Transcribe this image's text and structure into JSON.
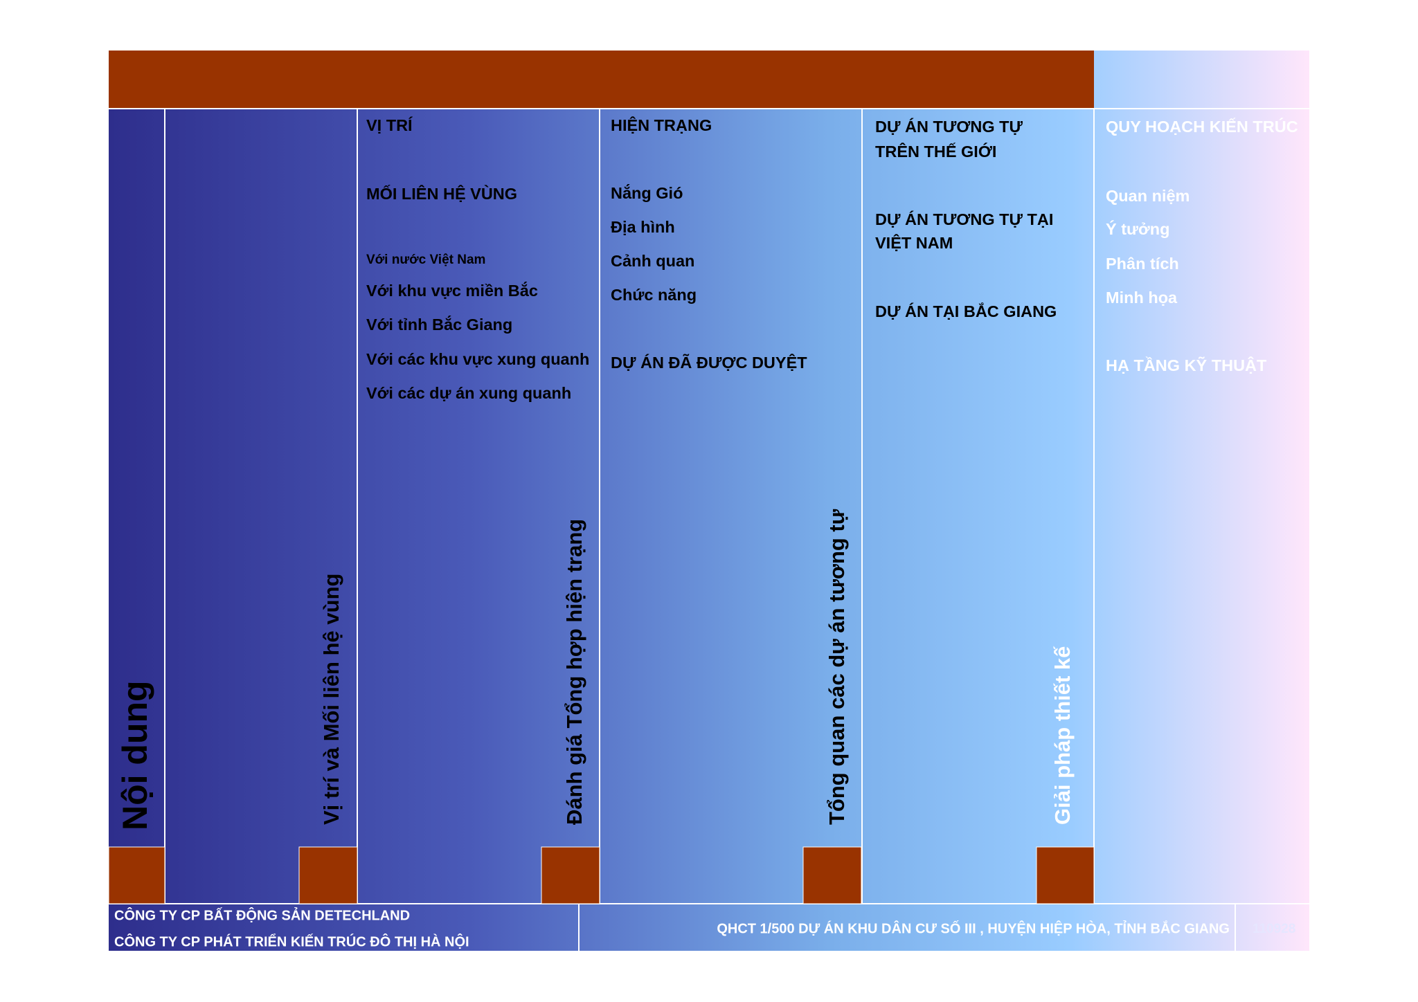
{
  "sidebar": {
    "title": "Nội dung"
  },
  "sections": [
    {
      "vertical_label": "Vị trí và Mối liên hệ vùng",
      "items": [
        "VỊ TRÍ",
        "MỐI LIÊN HỆ VÙNG",
        "Với nước Việt Nam",
        "Với khu vực miền Bắc",
        "Với tỉnh Bắc Giang",
        "Với các khu vực xung quanh",
        "Với các dự án xung quanh"
      ]
    },
    {
      "vertical_label": "Đánh giá Tổng hợp hiện trạng",
      "items": [
        "HIỆN TRẠNG",
        "Nắng Gió",
        "Địa hình",
        "Cảnh quan",
        "Chức năng",
        "DỰ ÁN ĐÃ ĐƯỢC DUYỆT"
      ]
    },
    {
      "vertical_label": "Tổng quan các dự án tương tự",
      "items": [
        "DỰ ÁN TƯƠNG TỰ",
        "TRÊN THẾ GIỚI",
        "DỰ ÁN TƯƠNG TỰ TẠI",
        "VIỆT NAM",
        "DỰ ÁN TẠI BẮC GIANG"
      ]
    },
    {
      "vertical_label": "Giải pháp thiết kế",
      "items": [
        "QUY HOẠCH KIẾN TRÚC",
        "Quan niệm",
        "Ý tưởng",
        "Phân tích",
        "Minh họa",
        "HẠ TẦNG KỸ THUẬT"
      ]
    }
  ],
  "footer": {
    "company_lines": [
      "CÔNG TY CP BẤT ĐỘNG SẢN DETECHLAND",
      "CÔNG TY CP PHÁT TRIỂN KIẾN TRÚC ĐÔ THỊ HÀ NỘI"
    ],
    "project": "QHCT 1/500 DỰ ÁN KHU DÂN CƯ SỐ III , HUYỆN HIỆP HÒA, TỈNH BẮC GIANG",
    "code": "110928"
  }
}
